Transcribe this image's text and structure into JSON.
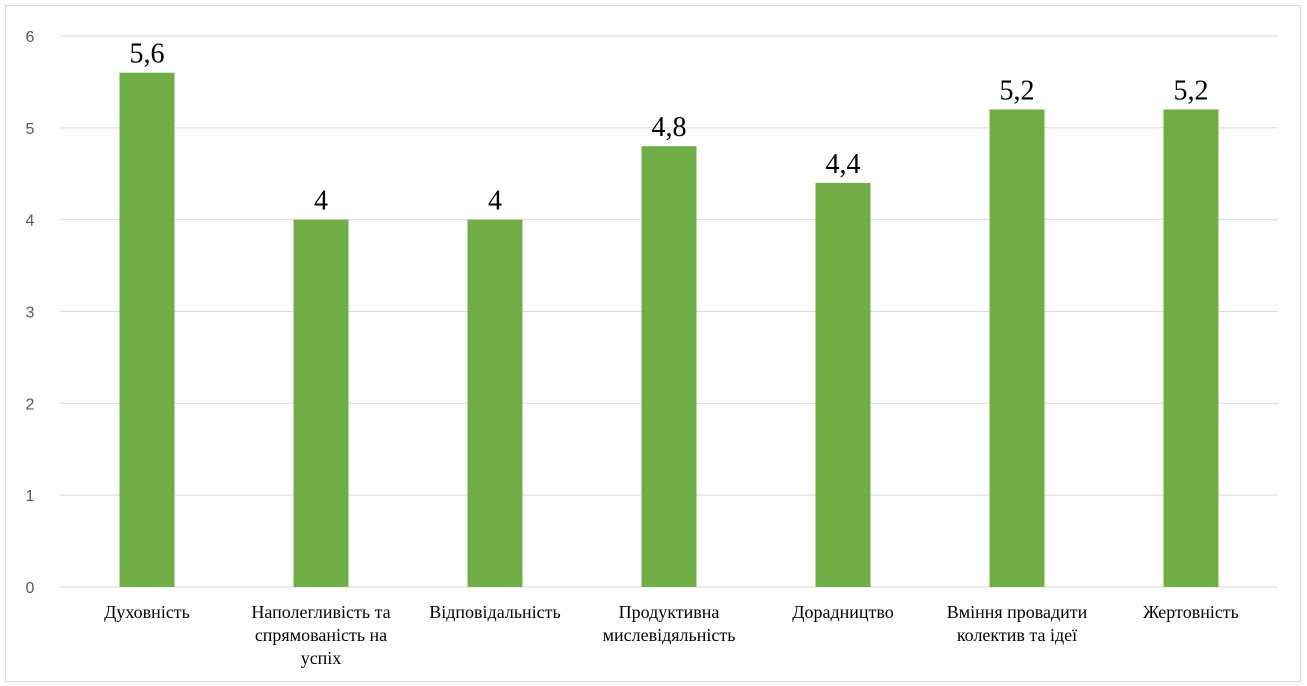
{
  "chart_data": {
    "type": "bar",
    "title": "",
    "xlabel": "",
    "ylabel": "",
    "categories": [
      "Духовність",
      "Наполегливість та спрямованість на успіх",
      "Відповідальність",
      "Продуктивна мислевідяльність",
      "Дорадництво",
      "Вміння провадити колектив та ідеї",
      "Жертовність"
    ],
    "category_lines": [
      [
        "Духовність"
      ],
      [
        "Наполегливість та",
        "спрямованість на",
        "успіх"
      ],
      [
        "Відповідальність"
      ],
      [
        "Продуктивна",
        "мислевідяльність"
      ],
      [
        "Дорадництво"
      ],
      [
        "Вміння провадити",
        "колектив та ідеї"
      ],
      [
        "Жертовність"
      ]
    ],
    "values": [
      5.6,
      4,
      4,
      4.8,
      4.4,
      5.2,
      5.2
    ],
    "value_labels": [
      "5,6",
      "4",
      "4",
      "4,8",
      "4,4",
      "5,2",
      "5,2"
    ],
    "ylim": [
      0,
      6
    ],
    "yticks": [
      "0",
      "1",
      "2",
      "3",
      "4",
      "5",
      "6"
    ],
    "grid": true,
    "legend": "none",
    "bar_color": "#70ad47",
    "grid_color": "#d9d9d9"
  }
}
